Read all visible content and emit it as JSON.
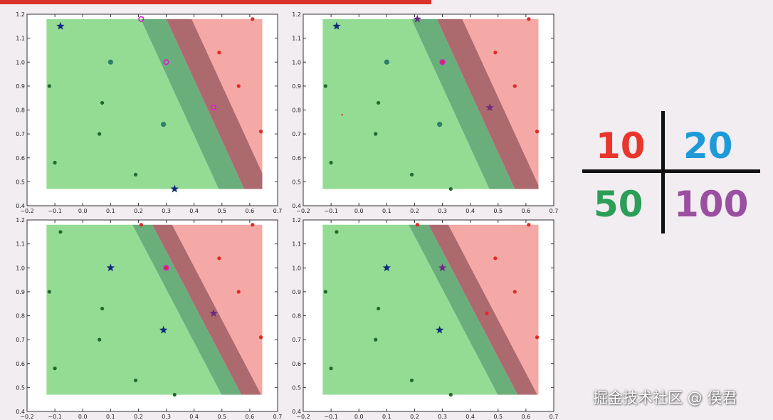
{
  "chart_data": [
    {
      "type": "scatter",
      "title": "",
      "xlim": [
        -0.2,
        0.7
      ],
      "ylim": [
        0.4,
        1.2
      ],
      "x_ticks": [
        "−0.2",
        "−0.1",
        "0.0",
        "0.1",
        "0.2",
        "0.3",
        "0.4",
        "0.5",
        "0.6",
        "0.7"
      ],
      "y_ticks": [
        "0.4",
        "0.5",
        "0.6",
        "0.7",
        "0.8",
        "0.9",
        "1.0",
        "1.1",
        "1.2"
      ],
      "grid": false,
      "regions": {
        "green": "#8fdc8f",
        "red": "#f4a8a6",
        "dark_green": "#6aaf7a",
        "dark_red": "#b06a6c"
      },
      "band": {
        "center": [
          [
            0.3,
            1.18
          ],
          [
            0.58,
            0.47
          ]
        ],
        "halfwidth": 0.085
      },
      "green_points": [
        [
          0.19,
          0.53
        ],
        [
          -0.1,
          0.58
        ],
        [
          0.06,
          0.7
        ],
        [
          0.07,
          0.83
        ],
        [
          -0.12,
          0.9
        ],
        [
          0.29,
          0.74
        ],
        [
          0.1,
          1.0
        ]
      ],
      "red_points": [
        [
          0.64,
          0.71
        ],
        [
          0.56,
          0.9
        ],
        [
          0.49,
          1.04
        ],
        [
          0.61,
          1.18
        ]
      ],
      "support_vectors": [
        {
          "x": -0.08,
          "y": 1.15,
          "class": "green"
        },
        {
          "x": 0.21,
          "y": 1.18,
          "class": "red"
        },
        {
          "x": 0.3,
          "y": 1.0,
          "class": "red"
        },
        {
          "x": 0.47,
          "y": 0.81,
          "class": "red"
        },
        {
          "x": 0.33,
          "y": 0.47,
          "class": "green"
        }
      ]
    },
    {
      "type": "scatter",
      "title": "",
      "xlim": [
        -0.2,
        0.7
      ],
      "ylim": [
        0.4,
        1.2
      ],
      "x_ticks": [
        "−0.2",
        "−0.1",
        "0.0",
        "0.1",
        "0.2",
        "0.3",
        "0.4",
        "0.5",
        "0.6",
        "0.7"
      ],
      "y_ticks": [
        "0.4",
        "0.5",
        "0.6",
        "0.7",
        "0.8",
        "0.9",
        "1.0",
        "1.1",
        "1.2"
      ],
      "grid": false,
      "band": {
        "center": [
          [
            0.28,
            1.18
          ],
          [
            0.56,
            0.47
          ]
        ],
        "halfwidth": 0.085
      },
      "green_points": [
        [
          0.19,
          0.53
        ],
        [
          -0.1,
          0.58
        ],
        [
          0.06,
          0.7
        ],
        [
          0.07,
          0.83
        ],
        [
          -0.12,
          0.9
        ],
        [
          0.29,
          0.74
        ],
        [
          0.1,
          1.0
        ],
        [
          0.33,
          0.47
        ]
      ],
      "red_points": [
        [
          0.64,
          0.71
        ],
        [
          0.56,
          0.9
        ],
        [
          0.49,
          1.04
        ],
        [
          0.61,
          1.18
        ],
        [
          0.3,
          1.0
        ]
      ],
      "support_vectors": [
        {
          "x": -0.08,
          "y": 1.15,
          "class": "green"
        },
        {
          "x": 0.21,
          "y": 1.18,
          "class": "red"
        },
        {
          "x": 0.47,
          "y": 0.81,
          "class": "red"
        }
      ]
    },
    {
      "type": "scatter",
      "title": "",
      "xlim": [
        -0.2,
        0.7
      ],
      "ylim": [
        0.4,
        1.2
      ],
      "x_ticks": [
        "−0.2",
        "−0.1",
        "0.0",
        "0.1",
        "0.2",
        "0.3",
        "0.4",
        "0.5",
        "0.6",
        "0.7"
      ],
      "y_ticks": [
        "0.4",
        "0.5",
        "0.6",
        "0.7",
        "0.8",
        "0.9",
        "1.0",
        "1.1",
        "1.2"
      ],
      "grid": false,
      "band": {
        "center": [
          [
            0.25,
            1.18
          ],
          [
            0.57,
            0.47
          ]
        ],
        "halfwidth": 0.065
      },
      "green_points": [
        [
          0.19,
          0.53
        ],
        [
          -0.1,
          0.58
        ],
        [
          0.06,
          0.7
        ],
        [
          0.07,
          0.83
        ],
        [
          -0.12,
          0.9
        ],
        [
          -0.08,
          1.15
        ],
        [
          0.33,
          0.47
        ]
      ],
      "red_points": [
        [
          0.64,
          0.71
        ],
        [
          0.56,
          0.9
        ],
        [
          0.49,
          1.04
        ],
        [
          0.61,
          1.18
        ],
        [
          0.21,
          1.18
        ],
        [
          0.3,
          1.0
        ]
      ],
      "support_vectors": [
        {
          "x": 0.1,
          "y": 1.0,
          "class": "green"
        },
        {
          "x": 0.29,
          "y": 0.74,
          "class": "green"
        },
        {
          "x": 0.47,
          "y": 0.81,
          "class": "red"
        }
      ]
    },
    {
      "type": "scatter",
      "title": "",
      "xlim": [
        -0.2,
        0.7
      ],
      "ylim": [
        0.4,
        1.2
      ],
      "x_ticks": [
        "−0.2",
        "−0.1",
        "0.0",
        "0.1",
        "0.2",
        "0.3",
        "0.4",
        "0.5",
        "0.6",
        "0.7"
      ],
      "y_ticks": [
        "0.4",
        "0.5",
        "0.6",
        "0.7",
        "0.8",
        "0.9",
        "1.0",
        "1.1",
        "1.2"
      ],
      "grid": false,
      "band": {
        "center": [
          [
            0.25,
            1.18
          ],
          [
            0.57,
            0.47
          ]
        ],
        "halfwidth": 0.065
      },
      "green_points": [
        [
          0.19,
          0.53
        ],
        [
          -0.1,
          0.58
        ],
        [
          0.06,
          0.7
        ],
        [
          0.07,
          0.83
        ],
        [
          -0.12,
          0.9
        ],
        [
          -0.08,
          1.15
        ],
        [
          0.33,
          0.47
        ]
      ],
      "red_points": [
        [
          0.64,
          0.71
        ],
        [
          0.56,
          0.9
        ],
        [
          0.49,
          1.04
        ],
        [
          0.61,
          1.18
        ],
        [
          0.21,
          1.18
        ],
        [
          0.46,
          0.81
        ]
      ],
      "support_vectors": [
        {
          "x": 0.1,
          "y": 1.0,
          "class": "green"
        },
        {
          "x": 0.29,
          "y": 0.74,
          "class": "green"
        },
        {
          "x": 0.3,
          "y": 1.0,
          "class": "red"
        }
      ]
    }
  ],
  "legend_quadrants": {
    "top_left": {
      "label": "10",
      "color": "#e8352d"
    },
    "top_right": {
      "label": "20",
      "color": "#1f9ad8"
    },
    "bottom_left": {
      "label": "50",
      "color": "#2c9e58"
    },
    "bottom_right": {
      "label": "100",
      "color": "#9a4fa0"
    }
  },
  "watermark": "掘金技术社区 @ 侯君"
}
